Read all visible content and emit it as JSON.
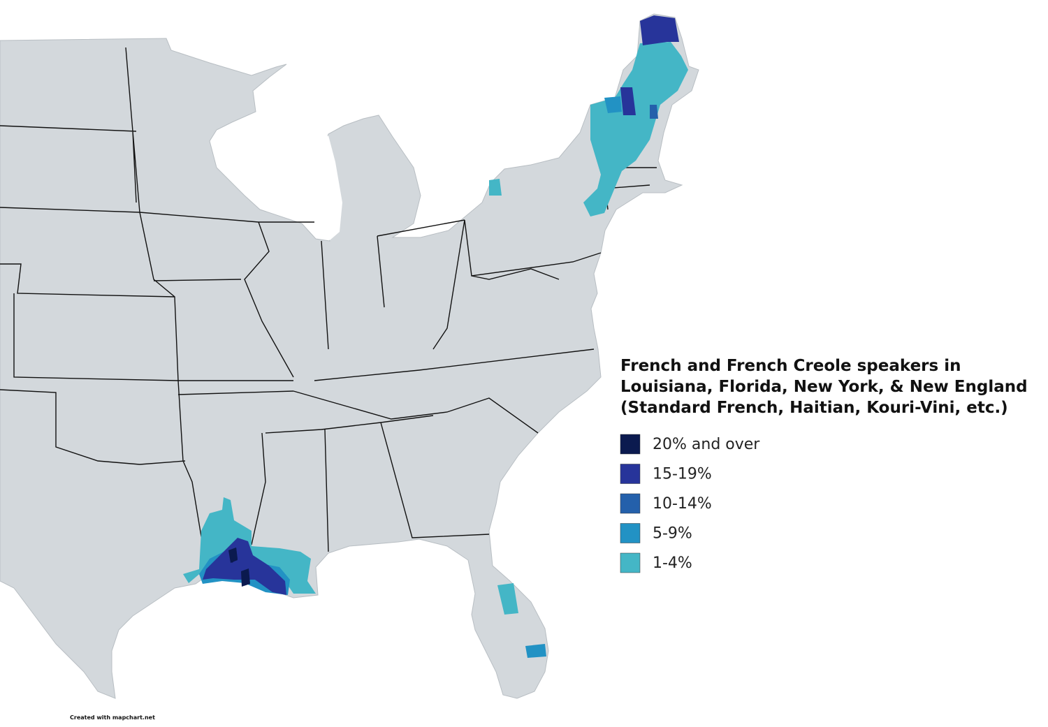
{
  "title": [
    "French and French Creole speakers in",
    "Louisiana, Florida, New York, & New England",
    "(Standard French, Haitian, Kouri-Vini, etc.)"
  ],
  "legend": [
    {
      "label": "20% and over",
      "color": "#0b1a4f"
    },
    {
      "label": "15-19%",
      "color": "#27349a"
    },
    {
      "label": "10-14%",
      "color": "#2460ab"
    },
    {
      "label": "5-9%",
      "color": "#2292c4"
    },
    {
      "label": "1-4%",
      "color": "#44b6c6"
    }
  ],
  "credit": "Created with mapchart.net"
}
